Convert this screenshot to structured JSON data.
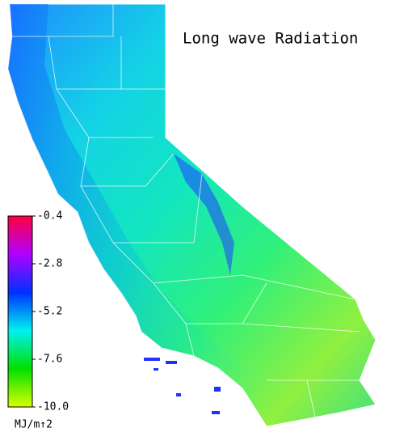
{
  "title": "Long wave Radiation",
  "colorbar": {
    "lim": [
      -10,
      -0.4
    ],
    "ticks": [
      -0.4,
      -2.8,
      -5.2,
      -7.6,
      {
        "value": -10,
        "label": "-10.0"
      }
    ],
    "colors": [
      "#d8ff00",
      "#00e000",
      "#00f0f0",
      "#0030ff",
      "#b000ff",
      "#ff0040"
    ],
    "unit": "MJ/m↑2"
  }
}
